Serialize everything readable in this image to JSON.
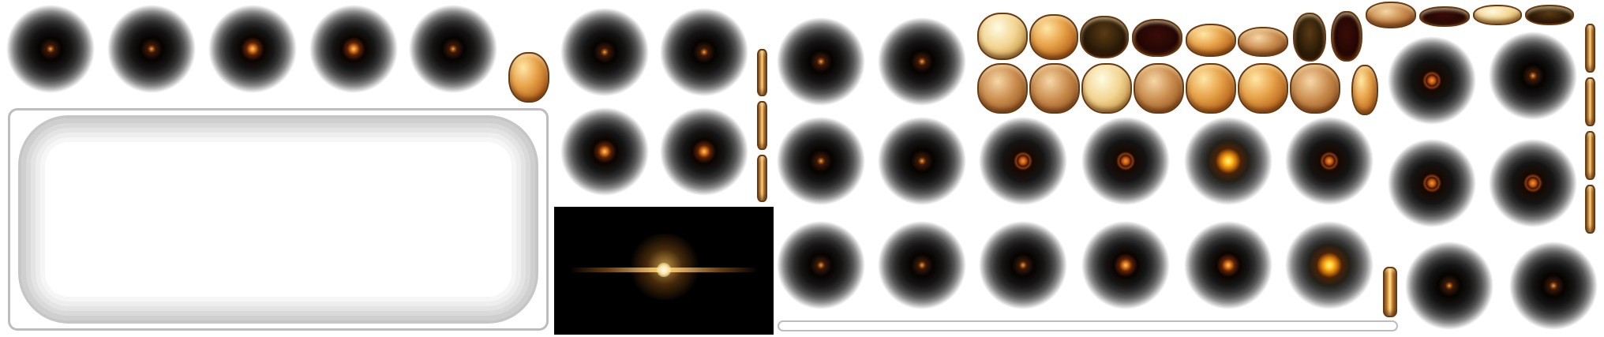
{
  "sprite_sheet": {
    "orbs": [
      {
        "kind": "dim"
      },
      {
        "kind": "dim"
      },
      {
        "kind": "dim"
      },
      {
        "kind": "dim"
      },
      {
        "kind": "dim"
      },
      {
        "kind": "dim"
      },
      {
        "kind": "dim"
      },
      {
        "kind": "dim"
      },
      {
        "kind": "dim"
      },
      {
        "kind": "dim"
      },
      {
        "kind": "dim"
      },
      {
        "kind": "dim"
      },
      {
        "kind": "dim"
      },
      {
        "kind": "ring"
      },
      {
        "kind": "ring"
      },
      {
        "kind": "hot"
      },
      {
        "kind": "ring"
      },
      {
        "kind": "dim"
      },
      {
        "kind": "dim"
      },
      {
        "kind": "dim"
      },
      {
        "kind": "mid"
      },
      {
        "kind": "mid"
      },
      {
        "kind": "hot"
      },
      {
        "kind": "ring"
      },
      {
        "kind": "dim"
      },
      {
        "kind": "ring"
      },
      {
        "kind": "ring"
      },
      {
        "kind": "dim"
      },
      {
        "kind": "dim"
      }
    ],
    "coins": [
      {
        "style": "pale"
      },
      {
        "style": "gold"
      },
      {
        "style": "dark"
      },
      {
        "style": "maroon"
      },
      {
        "style": "gold"
      },
      {
        "style": "bronze"
      },
      {
        "style": "dark"
      },
      {
        "style": "maroon"
      },
      {
        "style": "bronze"
      },
      {
        "style": "maroon"
      },
      {
        "style": "pale"
      },
      {
        "style": "dark"
      },
      {
        "style": "bronze"
      },
      {
        "style": "bronze"
      },
      {
        "style": "pale"
      },
      {
        "style": "bronze"
      },
      {
        "style": "gold"
      },
      {
        "style": "gold"
      },
      {
        "style": "bronze"
      },
      {
        "style": "edge"
      },
      {
        "style": "gold"
      },
      {
        "style": "edge"
      },
      {
        "style": "edge"
      },
      {
        "style": "edge"
      },
      {
        "style": "edge"
      },
      {
        "style": "edge"
      },
      {
        "style": "edge"
      },
      {
        "style": "edge"
      },
      {
        "style": "edge"
      },
      {
        "style": "edge"
      }
    ],
    "flare": {
      "style": "horizontal-lens-flare"
    }
  }
}
